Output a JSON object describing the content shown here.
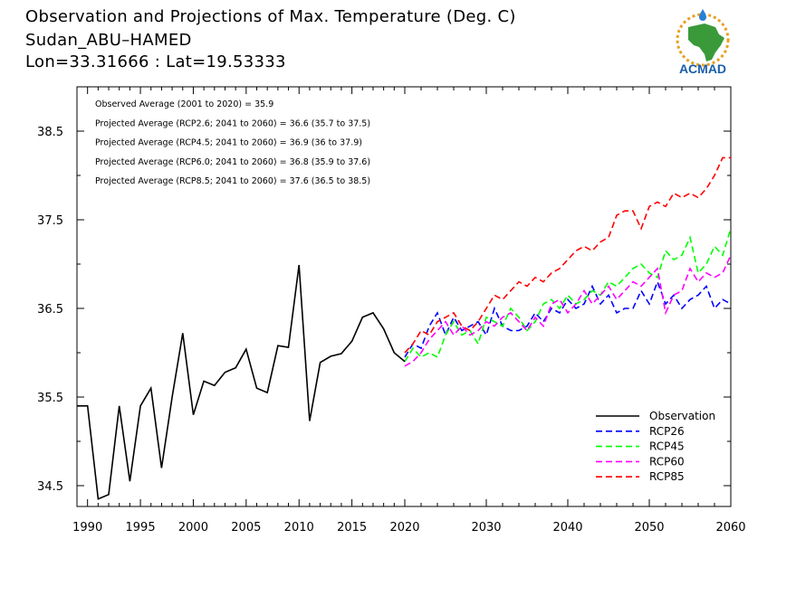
{
  "header": {
    "title_line1": "Observation and Projections of Max. Temperature (Deg. C)",
    "title_line2": "Sudan_ABU–HAMED",
    "title_line3": "Lon=33.31666 : Lat=19.53333"
  },
  "logo": {
    "text": "ACMAD",
    "icon": "africa-sun-logo-icon",
    "colors": {
      "africa": "#3a9a3a",
      "sun": "#e8a020",
      "text": "#1a5fa8",
      "drop": "#2a7fd4"
    }
  },
  "stats": [
    "Observed Average (2001 to 2020) = 35.9",
    "Projected Average (RCP2.6; 2041 to 2060) = 36.6 (35.7 to 37.5)",
    "Projected Average (RCP4.5; 2041 to 2060) = 36.9 (36 to 37.9)",
    "Projected Average (RCP6.0; 2041 to 2060) = 36.8 (35.9 to 37.6)",
    "Projected Average (RCP8.5; 2041 to 2060) = 37.6 (36.5 to 38.5)"
  ],
  "chart_data": {
    "type": "line",
    "title": "Observation and Projections of Max. Temperature (Deg. C)",
    "xlim": [
      1989,
      2060
    ],
    "ylim": [
      34.25,
      39.0
    ],
    "xticks": [
      1990,
      1995,
      2000,
      2005,
      2010,
      2015,
      2020,
      2030,
      2040,
      2050,
      2060
    ],
    "xtick_labels": [
      "1990",
      "1995",
      "2000",
      "2005",
      "2010",
      "2015",
      "2020",
      "2030",
      "2040",
      "2050",
      "2060"
    ],
    "yticks": [
      34.5,
      35.5,
      36.5,
      37.5,
      38.5
    ],
    "ytick_labels": [
      "34.5",
      "35.5",
      "36.5",
      "37.5",
      "38.5"
    ],
    "axis_break_year": 2020,
    "legend_position": "bottom-right",
    "series": [
      {
        "name": "Observation",
        "color": "#000000",
        "dashed": false,
        "x": [
          1989,
          1990,
          1991,
          1992,
          1993,
          1994,
          1995,
          1996,
          1997,
          1998,
          1999,
          2000,
          2001,
          2002,
          2003,
          2004,
          2005,
          2006,
          2007,
          2008,
          2009,
          2010,
          2011,
          2012,
          2013,
          2014,
          2015,
          2016,
          2017,
          2018,
          2019,
          2020
        ],
        "y": [
          35.4,
          35.4,
          34.35,
          34.4,
          35.4,
          34.55,
          35.4,
          35.6,
          34.7,
          35.5,
          36.22,
          35.3,
          35.68,
          35.63,
          35.78,
          35.83,
          36.04,
          35.6,
          35.55,
          36.08,
          36.06,
          36.99,
          35.23,
          35.89,
          35.96,
          35.99,
          36.13,
          36.4,
          36.45,
          36.27,
          36.0,
          35.9
        ]
      },
      {
        "name": "RCP26",
        "color": "#0000ff",
        "dashed": true,
        "x": [
          2020,
          2021,
          2022,
          2023,
          2024,
          2025,
          2026,
          2027,
          2028,
          2029,
          2030,
          2031,
          2032,
          2033,
          2034,
          2035,
          2036,
          2037,
          2038,
          2039,
          2040,
          2041,
          2042,
          2043,
          2044,
          2045,
          2046,
          2047,
          2048,
          2049,
          2050,
          2051,
          2052,
          2053,
          2054,
          2055,
          2056,
          2057,
          2058,
          2059,
          2060
        ],
        "y": [
          35.95,
          36.1,
          36.05,
          36.3,
          36.45,
          36.2,
          36.4,
          36.25,
          36.3,
          36.35,
          36.2,
          36.5,
          36.3,
          36.25,
          36.25,
          36.3,
          36.45,
          36.35,
          36.5,
          36.45,
          36.6,
          36.5,
          36.55,
          36.75,
          36.55,
          36.65,
          36.45,
          36.5,
          36.5,
          36.7,
          36.55,
          36.8,
          36.55,
          36.65,
          36.5,
          36.6,
          36.65,
          36.75,
          36.5,
          36.6,
          36.55
        ]
      },
      {
        "name": "RCP45",
        "color": "#00ff00",
        "dashed": true,
        "x": [
          2020,
          2021,
          2022,
          2023,
          2024,
          2025,
          2026,
          2027,
          2028,
          2029,
          2030,
          2031,
          2032,
          2033,
          2034,
          2035,
          2036,
          2037,
          2038,
          2039,
          2040,
          2041,
          2042,
          2043,
          2044,
          2045,
          2046,
          2047,
          2048,
          2049,
          2050,
          2051,
          2052,
          2053,
          2054,
          2055,
          2056,
          2057,
          2058,
          2059,
          2060
        ],
        "y": [
          35.9,
          36.05,
          35.95,
          36.0,
          35.95,
          36.2,
          36.35,
          36.2,
          36.25,
          36.1,
          36.4,
          36.35,
          36.3,
          36.5,
          36.4,
          36.25,
          36.35,
          36.55,
          36.6,
          36.5,
          36.65,
          36.55,
          36.6,
          36.7,
          36.65,
          36.8,
          36.75,
          36.85,
          36.95,
          37.0,
          36.9,
          36.85,
          37.15,
          37.05,
          37.1,
          37.3,
          36.9,
          37.0,
          37.2,
          37.1,
          37.4
        ]
      },
      {
        "name": "RCP60",
        "color": "#ff00ff",
        "dashed": true,
        "x": [
          2020,
          2021,
          2022,
          2023,
          2024,
          2025,
          2026,
          2027,
          2028,
          2029,
          2030,
          2031,
          2032,
          2033,
          2034,
          2035,
          2036,
          2037,
          2038,
          2039,
          2040,
          2041,
          2042,
          2043,
          2044,
          2045,
          2046,
          2047,
          2048,
          2049,
          2050,
          2051,
          2052,
          2053,
          2054,
          2055,
          2056,
          2057,
          2058,
          2059,
          2060
        ],
        "y": [
          35.85,
          35.9,
          36.0,
          36.15,
          36.25,
          36.35,
          36.2,
          36.3,
          36.2,
          36.25,
          36.35,
          36.3,
          36.4,
          36.45,
          36.35,
          36.25,
          36.4,
          36.3,
          36.55,
          36.6,
          36.45,
          36.55,
          36.7,
          36.55,
          36.65,
          36.75,
          36.6,
          36.7,
          36.8,
          36.75,
          36.85,
          36.95,
          36.45,
          36.65,
          36.7,
          36.95,
          36.8,
          36.9,
          36.85,
          36.9,
          37.1
        ]
      },
      {
        "name": "RCP85",
        "color": "#ff0000",
        "dashed": true,
        "x": [
          2020,
          2021,
          2022,
          2023,
          2024,
          2025,
          2026,
          2027,
          2028,
          2029,
          2030,
          2031,
          2032,
          2033,
          2034,
          2035,
          2036,
          2037,
          2038,
          2039,
          2040,
          2041,
          2042,
          2043,
          2044,
          2045,
          2046,
          2047,
          2048,
          2049,
          2050,
          2051,
          2052,
          2053,
          2054,
          2055,
          2056,
          2057,
          2058,
          2059,
          2060
        ],
        "y": [
          36.0,
          36.1,
          36.25,
          36.2,
          36.35,
          36.4,
          36.45,
          36.3,
          36.25,
          36.35,
          36.5,
          36.65,
          36.6,
          36.7,
          36.8,
          36.75,
          36.85,
          36.8,
          36.9,
          36.95,
          37.05,
          37.15,
          37.2,
          37.15,
          37.25,
          37.3,
          37.55,
          37.6,
          37.6,
          37.4,
          37.65,
          37.7,
          37.65,
          37.8,
          37.75,
          37.8,
          37.75,
          37.85,
          38.0,
          38.2,
          38.2
        ]
      }
    ]
  }
}
